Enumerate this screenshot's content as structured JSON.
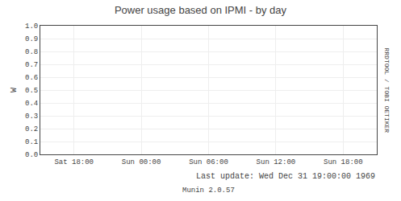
{
  "chart_data": {
    "type": "line",
    "title": "Power usage based on IPMI - by day",
    "ylabel": "W",
    "annotations": [
      "Last update: Wed Dec 31 19:00:00 1969",
      "Munin 2.0.57",
      "RRDTOOL / TOBI OETIKER"
    ],
    "xlim": [
      0,
      10
    ],
    "xticks": [
      {
        "value": 1,
        "label": "Sat 18:00"
      },
      {
        "value": 3,
        "label": "Sun 00:00"
      },
      {
        "value": 5,
        "label": "Sun 06:00"
      },
      {
        "value": 7,
        "label": "Sun 12:00"
      },
      {
        "value": 9,
        "label": "Sun 18:00"
      }
    ],
    "ylim": [
      0.0,
      1.0
    ],
    "yticks": [
      {
        "value": 0.0,
        "label": "0.0"
      },
      {
        "value": 0.1,
        "label": "0.1"
      },
      {
        "value": 0.2,
        "label": "0.2"
      },
      {
        "value": 0.3,
        "label": "0.3"
      },
      {
        "value": 0.4,
        "label": "0.4"
      },
      {
        "value": 0.5,
        "label": "0.5"
      },
      {
        "value": 0.6,
        "label": "0.6"
      },
      {
        "value": 0.7,
        "label": "0.7"
      },
      {
        "value": 0.8,
        "label": "0.8"
      },
      {
        "value": 0.9,
        "label": "0.9"
      },
      {
        "value": 1.0,
        "label": "1.0"
      }
    ],
    "grid": true
  }
}
